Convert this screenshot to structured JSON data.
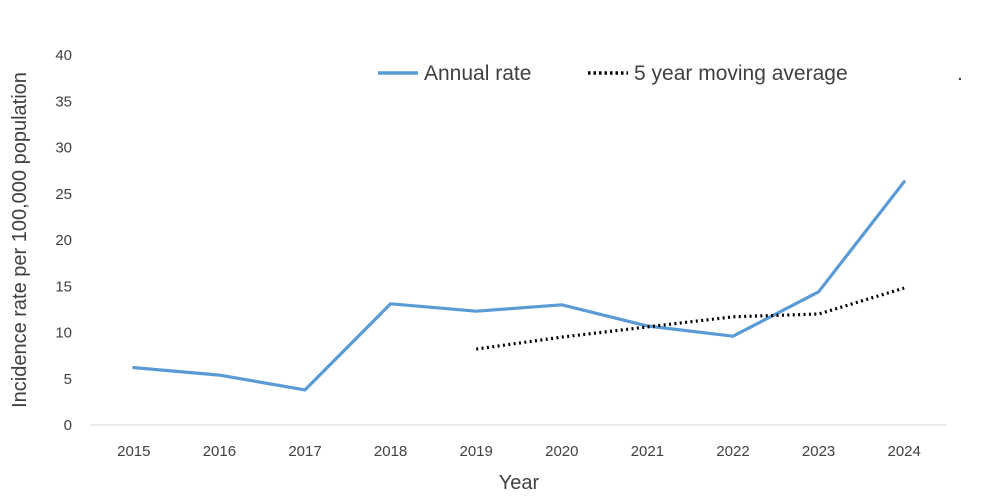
{
  "chart_data": {
    "type": "line",
    "categories": [
      "2015",
      "2016",
      "2017",
      "2018",
      "2019",
      "2020",
      "2021",
      "2022",
      "2023",
      "2024"
    ],
    "series": [
      {
        "name": "Annual rate",
        "color": "#5b9bd5",
        "style": "solid",
        "values": [
          6.2,
          5.4,
          3.8,
          13.1,
          12.3,
          13.0,
          10.7,
          9.6,
          14.4,
          26.3
        ]
      },
      {
        "name": "5 year moving average",
        "color": "#000000",
        "style": "dotted",
        "values": [
          null,
          null,
          null,
          null,
          8.2,
          9.5,
          10.6,
          11.7,
          12.0,
          14.8
        ]
      }
    ],
    "xlabel": "Year",
    "ylabel": "Incidence rate per 100,000 population",
    "ylim": [
      0,
      40
    ],
    "yticks": [
      0,
      5,
      10,
      15,
      20,
      25,
      30,
      35,
      40
    ],
    "grid": false,
    "legend": {
      "position": "top",
      "trailing_mark": "."
    }
  }
}
